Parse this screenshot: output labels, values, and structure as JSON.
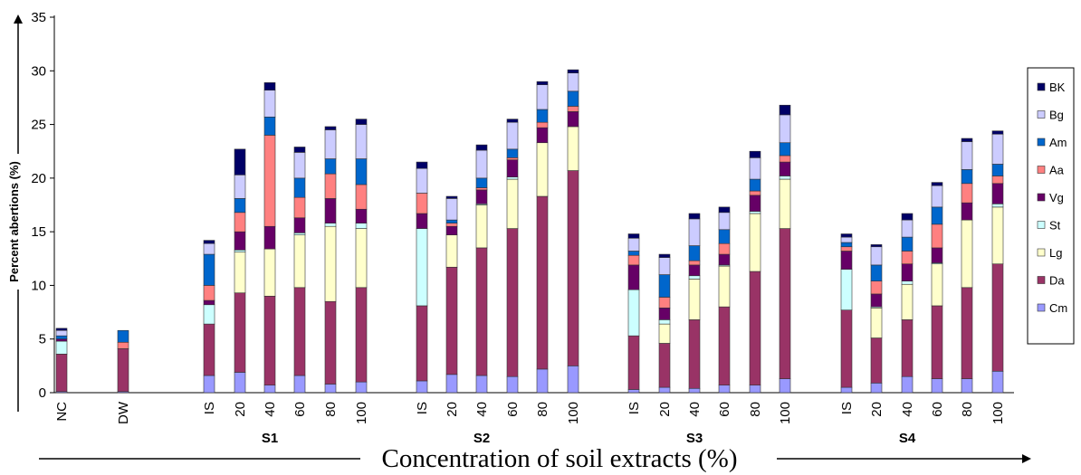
{
  "chart_data": {
    "type": "bar",
    "stacked": true,
    "ylabel": "Percent abertions (%)",
    "xlabel": "Concentration of soil extracts (%)",
    "ylim": [
      0,
      35
    ],
    "yticks": [
      0,
      5,
      10,
      15,
      20,
      25,
      30,
      35
    ],
    "legend_position": "right",
    "groups": [
      {
        "label": "",
        "categories": [
          "NC"
        ]
      },
      {
        "label": "",
        "categories": [
          "DW"
        ]
      },
      {
        "label": "S1",
        "categories": [
          "IS",
          "20",
          "40",
          "60",
          "80",
          "100"
        ]
      },
      {
        "label": "S2",
        "categories": [
          "IS",
          "20",
          "40",
          "60",
          "80",
          "100"
        ]
      },
      {
        "label": "S3",
        "categories": [
          "IS",
          "20",
          "40",
          "60",
          "80",
          "100"
        ]
      },
      {
        "label": "S4",
        "categories": [
          "IS",
          "20",
          "40",
          "60",
          "80",
          "100"
        ]
      }
    ],
    "series": [
      {
        "name": "Cm",
        "color": "#9999ff",
        "values": [
          0.1,
          0.1,
          1.6,
          1.9,
          0.7,
          1.6,
          0.8,
          1.0,
          1.1,
          1.7,
          1.6,
          1.5,
          2.2,
          2.5,
          0.3,
          0.5,
          0.4,
          0.7,
          0.7,
          1.3,
          0.5,
          0.9,
          1.5,
          1.3,
          1.3,
          2.0
        ]
      },
      {
        "name": "Da",
        "color": "#993366",
        "values": [
          3.5,
          4.0,
          4.8,
          7.4,
          8.3,
          8.2,
          7.7,
          8.8,
          7.0,
          10.0,
          11.9,
          13.8,
          16.1,
          18.2,
          5.0,
          4.1,
          6.4,
          7.3,
          10.6,
          14.0,
          7.2,
          4.2,
          5.3,
          6.8,
          8.5,
          10.0
        ]
      },
      {
        "name": "Lg",
        "color": "#ffffcc",
        "values": [
          0,
          0,
          0,
          3.8,
          4.4,
          4.9,
          7.0,
          5.5,
          0,
          3.0,
          4.0,
          4.6,
          5.0,
          4.1,
          0,
          1.8,
          3.8,
          3.8,
          5.4,
          4.6,
          0,
          2.8,
          3.3,
          3.9,
          6.3,
          5.3
        ]
      },
      {
        "name": "St",
        "color": "#ccffff",
        "values": [
          1.2,
          0,
          1.8,
          0.2,
          0,
          0.2,
          0.3,
          0.5,
          7.2,
          0,
          0.1,
          0.2,
          0,
          0,
          4.3,
          0.4,
          0.3,
          0.1,
          0.2,
          0.3,
          3.8,
          0.1,
          0.3,
          0.1,
          0,
          0.3
        ]
      },
      {
        "name": "Vg",
        "color": "#660066",
        "values": [
          0.2,
          0,
          0.4,
          1.7,
          2.1,
          1.4,
          2.3,
          1.3,
          1.4,
          0.8,
          1.3,
          1.6,
          1.4,
          1.4,
          2.3,
          1.1,
          1.0,
          1.0,
          1.5,
          1.3,
          1.7,
          1.2,
          1.6,
          1.4,
          1.6,
          1.9
        ]
      },
      {
        "name": "Aa",
        "color": "#ff8080",
        "values": [
          0,
          0.6,
          1.4,
          1.8,
          8.5,
          1.9,
          2.3,
          2.3,
          1.9,
          0.3,
          0.2,
          0.2,
          0.5,
          0.5,
          0.9,
          1.0,
          0.4,
          1.0,
          0.4,
          0.6,
          0.4,
          1.2,
          1.2,
          2.2,
          1.8,
          0.7
        ]
      },
      {
        "name": "Am",
        "color": "#0066cc",
        "values": [
          0.3,
          1.1,
          2.9,
          1.3,
          1.7,
          1.8,
          1.4,
          2.4,
          0,
          0.3,
          0.9,
          0.8,
          1.2,
          1.4,
          0.4,
          2.1,
          1.4,
          1.3,
          1.1,
          1.2,
          0.4,
          1.5,
          1.3,
          1.6,
          1.3,
          1.1
        ]
      },
      {
        "name": "Bg",
        "color": "#ccccff",
        "values": [
          0.5,
          0,
          1.0,
          2.2,
          2.5,
          2.4,
          2.7,
          3.2,
          2.3,
          2.0,
          2.6,
          2.5,
          2.3,
          1.7,
          1.2,
          1.6,
          2.5,
          1.6,
          2.0,
          2.6,
          0.5,
          1.7,
          1.6,
          2.0,
          2.6,
          2.8
        ]
      },
      {
        "name": "BK",
        "color": "#000066",
        "values": [
          0.2,
          0,
          0.3,
          2.4,
          0.7,
          0.5,
          0.3,
          0.5,
          0.6,
          0.2,
          0.5,
          0.3,
          0.3,
          0.3,
          0.4,
          0.3,
          0.5,
          0.5,
          0.6,
          0.9,
          0.3,
          0.2,
          0.6,
          0.3,
          0.3,
          0.3
        ]
      }
    ]
  }
}
